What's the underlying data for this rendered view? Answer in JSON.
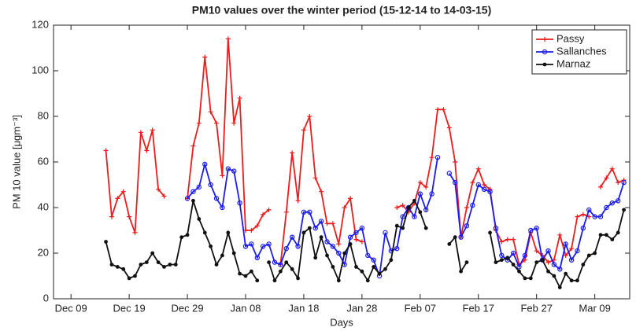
{
  "chart_data": {
    "type": "line",
    "title": "PM10 values over the winter period (15-12-14 to 14-03-15)",
    "x_label": "Days",
    "y_label": "PM 10 value [μgm⁻³]",
    "x": [
      "Dec 15",
      "Dec 16",
      "Dec 17",
      "Dec 18",
      "Dec 19",
      "Dec 20",
      "Dec 21",
      "Dec 22",
      "Dec 23",
      "Dec 24",
      "Dec 25",
      "Dec 26",
      "Dec 27",
      "Dec 28",
      "Dec 29",
      "Dec 30",
      "Dec 31",
      "Jan 01",
      "Jan 02",
      "Jan 03",
      "Jan 04",
      "Jan 05",
      "Jan 06",
      "Jan 07",
      "Jan 08",
      "Jan 09",
      "Jan 10",
      "Jan 11",
      "Jan 12",
      "Jan 13",
      "Jan 14",
      "Jan 15",
      "Jan 16",
      "Jan 17",
      "Jan 18",
      "Jan 19",
      "Jan 20",
      "Jan 21",
      "Jan 22",
      "Jan 23",
      "Jan 24",
      "Jan 25",
      "Jan 26",
      "Jan 27",
      "Jan 28",
      "Jan 29",
      "Jan 30",
      "Jan 31",
      "Feb 01",
      "Feb 02",
      "Feb 03",
      "Feb 04",
      "Feb 05",
      "Feb 06",
      "Feb 07",
      "Feb 08",
      "Feb 09",
      "Feb 10",
      "Feb 11",
      "Feb 12",
      "Feb 13",
      "Feb 14",
      "Feb 15",
      "Feb 16",
      "Feb 17",
      "Feb 18",
      "Feb 19",
      "Feb 20",
      "Feb 21",
      "Feb 22",
      "Feb 23",
      "Feb 24",
      "Feb 25",
      "Feb 26",
      "Feb 27",
      "Feb 28",
      "Mar 01",
      "Mar 02",
      "Mar 03",
      "Mar 04",
      "Mar 05",
      "Mar 06",
      "Mar 07",
      "Mar 08",
      "Mar 09",
      "Mar 10",
      "Mar 11",
      "Mar 12",
      "Mar 13",
      "Mar 14"
    ],
    "series": [
      {
        "name": "Passy",
        "color": "#ee1c1c",
        "marker": "plus",
        "values": [
          65,
          36,
          44,
          47,
          36,
          29,
          73,
          65,
          74,
          48,
          45,
          null,
          null,
          null,
          44,
          67,
          77,
          106,
          82,
          77,
          54,
          114,
          77,
          88,
          30,
          30,
          32,
          37,
          39,
          null,
          15,
          38,
          64,
          43,
          74,
          80,
          53,
          47,
          33,
          33,
          24,
          40,
          44,
          26,
          25,
          null,
          null,
          null,
          null,
          null,
          40,
          41,
          38,
          42,
          51,
          49,
          62,
          83,
          83,
          75,
          60,
          27,
          40,
          51,
          57,
          50,
          48,
          30,
          25,
          26,
          26,
          15,
          17,
          29,
          21,
          19,
          16,
          17,
          28,
          19,
          22,
          36,
          37,
          36,
          null,
          49,
          53,
          57,
          51,
          52
        ]
      },
      {
        "name": "Sallanches",
        "color": "#1c1cee",
        "marker": "circle",
        "values": [
          null,
          null,
          null,
          null,
          null,
          null,
          null,
          null,
          null,
          null,
          null,
          null,
          null,
          null,
          44,
          47,
          49,
          59,
          50,
          44,
          40,
          57,
          56,
          42,
          23,
          24,
          18,
          23,
          24,
          16,
          15,
          22,
          27,
          23,
          38,
          38,
          31,
          34,
          25,
          23,
          20,
          15,
          27,
          29,
          31,
          19,
          17,
          10,
          29,
          21,
          22,
          36,
          40,
          36,
          46,
          39,
          46,
          62,
          null,
          55,
          51,
          27,
          32,
          41,
          50,
          48,
          47,
          31,
          19,
          17,
          20,
          14,
          19,
          30,
          31,
          17,
          21,
          15,
          13,
          24,
          17,
          21,
          31,
          39,
          36,
          36,
          40,
          42,
          43,
          51
        ]
      },
      {
        "name": "Marnaz",
        "color": "#111111",
        "marker": "dot",
        "values": [
          25,
          15,
          14,
          13,
          9,
          10,
          15,
          16,
          20,
          16,
          14,
          15,
          15,
          27,
          28,
          43,
          35,
          29,
          23,
          15,
          19,
          29,
          20,
          11,
          10,
          12,
          8,
          null,
          16,
          8,
          12,
          16,
          13,
          9,
          29,
          31,
          18,
          27,
          19,
          14,
          8,
          20,
          24,
          14,
          12,
          8,
          14,
          11,
          13,
          17,
          32,
          31,
          40,
          43,
          38,
          31,
          null,
          null,
          null,
          24,
          27,
          12,
          16,
          null,
          null,
          null,
          29,
          16,
          17,
          18,
          15,
          12,
          9,
          9,
          16,
          17,
          12,
          10,
          5,
          11,
          8,
          8,
          15,
          19,
          20,
          28,
          28,
          26,
          29,
          39
        ]
      }
    ],
    "xlim": [
      "Dec 06",
      "Mar 15"
    ],
    "xticks": [
      "Dec 09",
      "Dec 19",
      "Dec 29",
      "Jan 08",
      "Jan 18",
      "Jan 28",
      "Feb 07",
      "Feb 17",
      "Feb 27",
      "Mar 09"
    ],
    "ylim": [
      0,
      120
    ],
    "yticks": [
      0,
      20,
      40,
      60,
      80,
      100,
      120
    ],
    "grid": false,
    "legend": "upper right"
  }
}
